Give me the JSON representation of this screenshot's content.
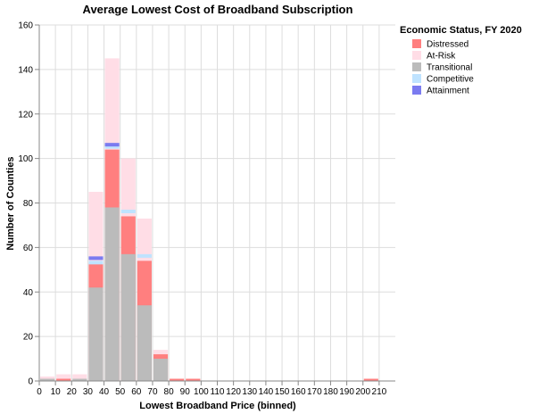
{
  "chart_data": {
    "type": "bar",
    "stacked": true,
    "overlapping": true,
    "title": "Average Lowest Cost of Broadband Subscription",
    "xlabel": "Lowest Broadband Price (binned)",
    "ylabel": "Number of Counties",
    "ylim": [
      0,
      160
    ],
    "yticks": [
      0,
      20,
      40,
      60,
      80,
      100,
      120,
      140,
      160
    ],
    "xticks": [
      0,
      10,
      20,
      30,
      40,
      50,
      60,
      70,
      80,
      90,
      100,
      110,
      120,
      130,
      140,
      150,
      160,
      170,
      180,
      190,
      200,
      210
    ],
    "xlim": [
      0,
      220
    ],
    "grid": true,
    "legend": {
      "title": "Economic Status, FY 2020",
      "position": "right"
    },
    "series": [
      {
        "name": "Distressed",
        "color": "#ff7f7f",
        "opacity": 1.0,
        "bins": [
          [
            0,
            1
          ],
          [
            10,
            1
          ],
          [
            30,
            53
          ],
          [
            40,
            104
          ],
          [
            50,
            74
          ],
          [
            60,
            54
          ],
          [
            70,
            12
          ],
          [
            80,
            1
          ],
          [
            90,
            1
          ],
          [
            200,
            1
          ]
        ]
      },
      {
        "name": "At-Risk",
        "color": "#ffdde6",
        "opacity": 1.0,
        "bins": [
          [
            0,
            2
          ],
          [
            10,
            3
          ],
          [
            20,
            3
          ],
          [
            30,
            85
          ],
          [
            40,
            145
          ],
          [
            50,
            100
          ],
          [
            60,
            73
          ],
          [
            70,
            14
          ],
          [
            80,
            1
          ],
          [
            90,
            1
          ]
        ]
      },
      {
        "name": "Transitional",
        "color": "#bbbbbb",
        "opacity": 1.0,
        "bins": [
          [
            0,
            1
          ],
          [
            20,
            1
          ],
          [
            30,
            42
          ],
          [
            40,
            78
          ],
          [
            50,
            57
          ],
          [
            60,
            34
          ],
          [
            70,
            10
          ]
        ]
      },
      {
        "name": "Competitive",
        "color": "#bfe3ff",
        "opacity": 1.0,
        "bins": [
          [
            30,
            54
          ],
          [
            40,
            106
          ],
          [
            50,
            77
          ],
          [
            60,
            57
          ]
        ]
      },
      {
        "name": "Attainment",
        "color": "#7b7bf0",
        "opacity": 1.0,
        "bins": [
          [
            30,
            56
          ],
          [
            40,
            107
          ]
        ]
      }
    ],
    "draw_order": [
      "At-Risk",
      "Distressed",
      "Transitional",
      "Competitive",
      "Attainment"
    ],
    "thin_marks": [
      "Competitive",
      "Attainment"
    ]
  }
}
